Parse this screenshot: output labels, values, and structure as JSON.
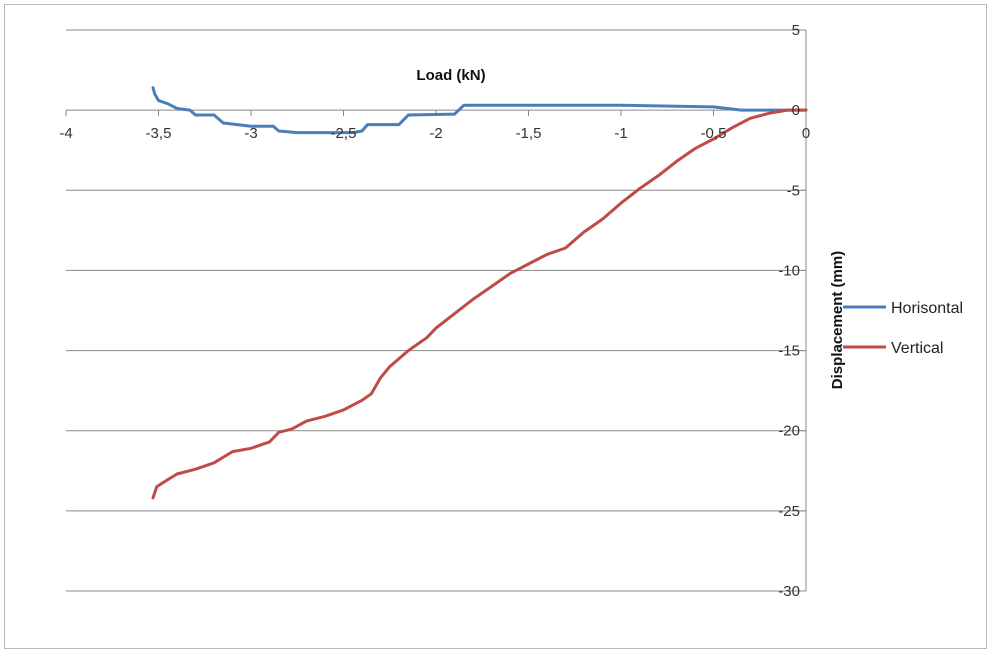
{
  "chart_data": {
    "type": "line",
    "title": "",
    "xlabel": "Load (kN)",
    "ylabel": "Displacement (mm)",
    "xlim": [
      -4,
      0
    ],
    "ylim": [
      -30,
      5
    ],
    "x_ticks": [
      -4,
      -3.5,
      -3,
      -2.5,
      -2,
      -1.5,
      -1,
      -0.5,
      0
    ],
    "x_tick_labels": [
      "-4",
      "-3,5",
      "-3",
      "-2,5",
      "-2",
      "-1,5",
      "-1",
      "-0,5",
      "0"
    ],
    "y_ticks": [
      5,
      0,
      -5,
      -10,
      -15,
      -20,
      -25,
      -30
    ],
    "y_tick_labels": [
      "5",
      "0",
      "-5",
      "-10",
      "-15",
      "-20",
      "-25",
      "-30"
    ],
    "grid": "horizontal",
    "legend_position": "right",
    "series": [
      {
        "name": "Horisontal",
        "color": "#4a7ebb",
        "points": [
          [
            -3.53,
            1.4
          ],
          [
            -3.52,
            1.0
          ],
          [
            -3.5,
            0.6
          ],
          [
            -3.45,
            0.4
          ],
          [
            -3.4,
            0.1
          ],
          [
            -3.33,
            0.0
          ],
          [
            -3.3,
            -0.3
          ],
          [
            -3.2,
            -0.3
          ],
          [
            -3.15,
            -0.8
          ],
          [
            -3.0,
            -1.0
          ],
          [
            -2.88,
            -1.0
          ],
          [
            -2.85,
            -1.3
          ],
          [
            -2.75,
            -1.4
          ],
          [
            -2.6,
            -1.4
          ],
          [
            -2.45,
            -1.4
          ],
          [
            -2.4,
            -1.3
          ],
          [
            -2.37,
            -0.9
          ],
          [
            -2.2,
            -0.9
          ],
          [
            -2.15,
            -0.3
          ],
          [
            -1.9,
            -0.25
          ],
          [
            -1.85,
            0.3
          ],
          [
            -1.5,
            0.3
          ],
          [
            -1.0,
            0.3
          ],
          [
            -0.5,
            0.2
          ],
          [
            -0.35,
            0.0
          ],
          [
            -0.2,
            0.0
          ],
          [
            0,
            0.0
          ]
        ]
      },
      {
        "name": "Vertical",
        "color": "#be4b48",
        "points": [
          [
            -3.53,
            -24.2
          ],
          [
            -3.51,
            -23.5
          ],
          [
            -3.47,
            -23.2
          ],
          [
            -3.4,
            -22.7
          ],
          [
            -3.3,
            -22.4
          ],
          [
            -3.2,
            -22.0
          ],
          [
            -3.1,
            -21.3
          ],
          [
            -3.0,
            -21.1
          ],
          [
            -2.9,
            -20.7
          ],
          [
            -2.85,
            -20.1
          ],
          [
            -2.78,
            -19.9
          ],
          [
            -2.7,
            -19.4
          ],
          [
            -2.6,
            -19.1
          ],
          [
            -2.5,
            -18.7
          ],
          [
            -2.4,
            -18.1
          ],
          [
            -2.35,
            -17.7
          ],
          [
            -2.3,
            -16.7
          ],
          [
            -2.25,
            -16.0
          ],
          [
            -2.15,
            -15.0
          ],
          [
            -2.05,
            -14.2
          ],
          [
            -2.0,
            -13.6
          ],
          [
            -1.9,
            -12.7
          ],
          [
            -1.8,
            -11.8
          ],
          [
            -1.7,
            -11.0
          ],
          [
            -1.6,
            -10.2
          ],
          [
            -1.5,
            -9.6
          ],
          [
            -1.4,
            -9.0
          ],
          [
            -1.3,
            -8.6
          ],
          [
            -1.2,
            -7.6
          ],
          [
            -1.1,
            -6.8
          ],
          [
            -1.0,
            -5.8
          ],
          [
            -0.9,
            -4.9
          ],
          [
            -0.8,
            -4.1
          ],
          [
            -0.7,
            -3.2
          ],
          [
            -0.6,
            -2.4
          ],
          [
            -0.5,
            -1.8
          ],
          [
            -0.4,
            -1.1
          ],
          [
            -0.3,
            -0.5
          ],
          [
            -0.2,
            -0.2
          ],
          [
            -0.1,
            0.0
          ],
          [
            0,
            0.0
          ]
        ]
      }
    ]
  }
}
